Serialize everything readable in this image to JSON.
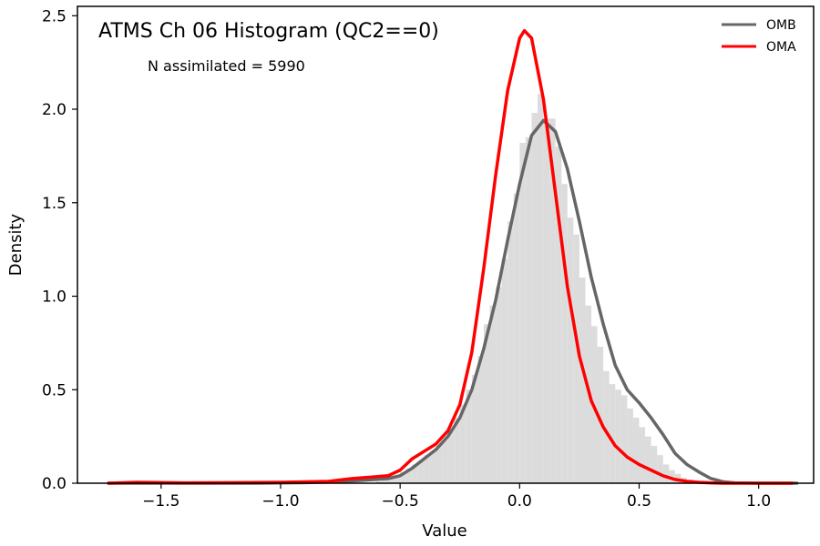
{
  "chart_data": {
    "type": "histogram",
    "title": "ATMS Ch 06 Histogram (QC2==0)",
    "annotation": "N assimilated = 5990",
    "xlabel": "Value",
    "ylabel": "Density",
    "xlim": [
      -1.85,
      1.23
    ],
    "ylim": [
      0,
      2.55
    ],
    "xticks": [
      -1.5,
      -1.0,
      -0.5,
      0.0,
      0.5,
      1.0
    ],
    "xtick_labels": [
      "−1.5",
      "−1.0",
      "−0.5",
      "0.0",
      "0.5",
      "1.0"
    ],
    "yticks": [
      0.0,
      0.5,
      1.0,
      1.5,
      2.0,
      2.5
    ],
    "ytick_labels": [
      "0.0",
      "0.5",
      "1.0",
      "1.5",
      "2.0",
      "2.5"
    ],
    "grid": false,
    "legend_position": "top-right",
    "histogram": {
      "color": "#dcdcdc",
      "bin_edges": [
        -0.6,
        -0.575,
        -0.55,
        -0.525,
        -0.5,
        -0.475,
        -0.45,
        -0.425,
        -0.4,
        -0.375,
        -0.35,
        -0.325,
        -0.3,
        -0.275,
        -0.25,
        -0.225,
        -0.2,
        -0.175,
        -0.15,
        -0.125,
        -0.1,
        -0.075,
        -0.05,
        -0.025,
        0.0,
        0.025,
        0.05,
        0.075,
        0.1,
        0.125,
        0.15,
        0.175,
        0.2,
        0.225,
        0.25,
        0.275,
        0.3,
        0.325,
        0.35,
        0.375,
        0.4,
        0.425,
        0.45,
        0.475,
        0.5,
        0.525,
        0.55,
        0.575,
        0.6,
        0.625,
        0.65,
        0.675,
        0.7,
        0.725,
        0.75,
        0.775,
        0.8
      ],
      "density": [
        0.01,
        0.02,
        0.03,
        0.04,
        0.06,
        0.08,
        0.1,
        0.12,
        0.15,
        0.17,
        0.2,
        0.23,
        0.28,
        0.35,
        0.42,
        0.5,
        0.58,
        0.68,
        0.85,
        0.95,
        1.05,
        1.2,
        1.4,
        1.55,
        1.82,
        1.85,
        1.98,
        2.08,
        1.95,
        1.95,
        1.8,
        1.6,
        1.42,
        1.33,
        1.1,
        0.95,
        0.84,
        0.73,
        0.6,
        0.53,
        0.5,
        0.47,
        0.4,
        0.35,
        0.3,
        0.25,
        0.2,
        0.15,
        0.1,
        0.07,
        0.05,
        0.03,
        0.02,
        0.01,
        0.01,
        0.005
      ]
    },
    "series": [
      {
        "name": "OMB",
        "color": "#666666",
        "x": [
          -1.72,
          -1.5,
          -1.3,
          -1.1,
          -0.9,
          -0.8,
          -0.7,
          -0.6,
          -0.55,
          -0.5,
          -0.45,
          -0.4,
          -0.35,
          -0.3,
          -0.25,
          -0.2,
          -0.15,
          -0.1,
          -0.05,
          0.0,
          0.05,
          0.1,
          0.15,
          0.2,
          0.25,
          0.3,
          0.35,
          0.4,
          0.45,
          0.5,
          0.55,
          0.6,
          0.65,
          0.7,
          0.75,
          0.8,
          0.85,
          0.9,
          1.0,
          1.16
        ],
        "y": [
          0.0,
          0.0,
          0.0,
          0.0,
          0.003,
          0.006,
          0.012,
          0.02,
          0.025,
          0.04,
          0.08,
          0.13,
          0.18,
          0.25,
          0.35,
          0.5,
          0.72,
          0.98,
          1.3,
          1.6,
          1.86,
          1.94,
          1.88,
          1.68,
          1.4,
          1.1,
          0.85,
          0.63,
          0.5,
          0.43,
          0.35,
          0.26,
          0.16,
          0.1,
          0.06,
          0.025,
          0.008,
          0.002,
          0.0,
          0.0
        ]
      },
      {
        "name": "OMA",
        "color": "#ff0000",
        "x": [
          -1.72,
          -1.6,
          -1.4,
          -1.2,
          -1.0,
          -0.8,
          -0.7,
          -0.6,
          -0.55,
          -0.5,
          -0.45,
          -0.4,
          -0.35,
          -0.3,
          -0.25,
          -0.2,
          -0.15,
          -0.1,
          -0.05,
          0.0,
          0.02,
          0.05,
          0.1,
          0.15,
          0.2,
          0.25,
          0.3,
          0.35,
          0.4,
          0.45,
          0.5,
          0.55,
          0.6,
          0.65,
          0.7,
          0.75,
          0.8,
          0.85,
          1.0,
          1.14
        ],
        "y": [
          0.0,
          0.005,
          0.002,
          0.003,
          0.005,
          0.01,
          0.025,
          0.035,
          0.04,
          0.07,
          0.13,
          0.17,
          0.21,
          0.28,
          0.42,
          0.7,
          1.15,
          1.65,
          2.1,
          2.38,
          2.42,
          2.38,
          2.05,
          1.55,
          1.05,
          0.68,
          0.44,
          0.3,
          0.2,
          0.14,
          0.1,
          0.07,
          0.04,
          0.02,
          0.01,
          0.005,
          0.002,
          0.0,
          0.0,
          0.0
        ]
      }
    ]
  }
}
